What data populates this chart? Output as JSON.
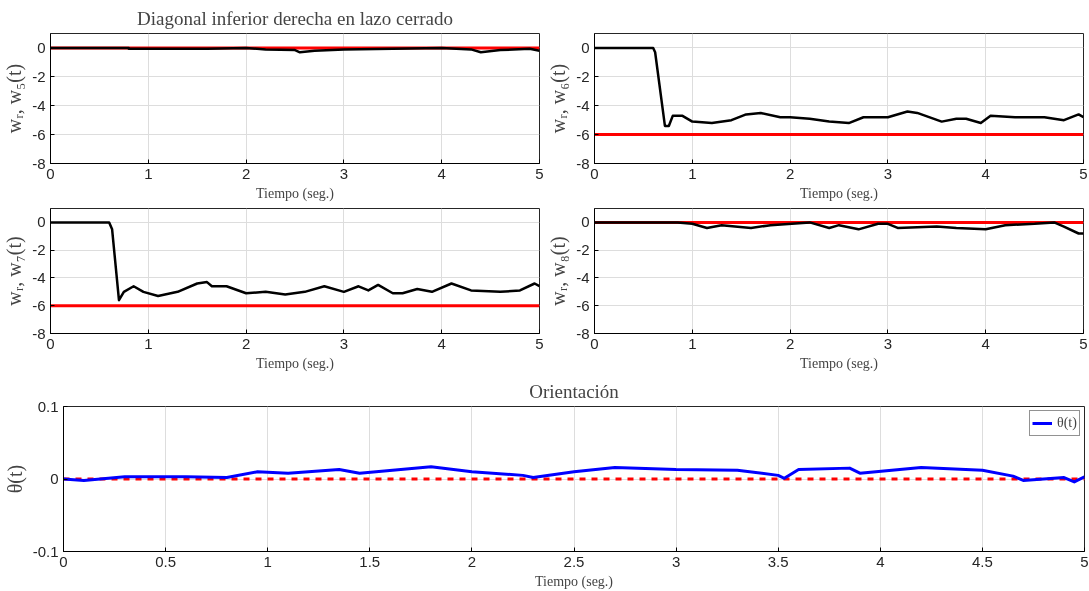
{
  "chart_data": [
    {
      "type": "line",
      "title": "Diagonal inferior derecha en lazo cerrado",
      "xlabel": "Tiempo (seg.)",
      "ylabel": "wᵣ, w₅(t)",
      "xlim": [
        0,
        5
      ],
      "ylim": [
        -8,
        1
      ],
      "xticks": [
        0,
        1,
        2,
        3,
        4,
        5
      ],
      "yticks": [
        -8,
        -6,
        -4,
        -2,
        0
      ],
      "grid": true,
      "series": [
        {
          "color": "#ff0000",
          "x": [
            0,
            5
          ],
          "values": [
            0,
            0
          ]
        },
        {
          "color": "#000000",
          "x": [
            0,
            0.8,
            0.8,
            1.6,
            2.0,
            2.2,
            2.5,
            2.55,
            2.7,
            3.0,
            3.5,
            4.0,
            4.3,
            4.4,
            4.6,
            4.9,
            5
          ],
          "values": [
            0,
            0,
            -0.05,
            -0.05,
            0,
            -0.1,
            -0.15,
            -0.3,
            -0.2,
            -0.1,
            -0.05,
            0,
            -0.1,
            -0.3,
            -0.15,
            -0.05,
            -0.2
          ]
        }
      ]
    },
    {
      "type": "line",
      "xlabel": "Tiempo (seg.)",
      "ylabel": "wᵣ, w₆(t)",
      "xlim": [
        0,
        5
      ],
      "ylim": [
        -8,
        1
      ],
      "xticks": [
        0,
        1,
        2,
        3,
        4,
        5
      ],
      "yticks": [
        -8,
        -6,
        -4,
        -2,
        0
      ],
      "grid": true,
      "series": [
        {
          "color": "#ff0000",
          "x": [
            0,
            5
          ],
          "values": [
            -6,
            -6
          ]
        },
        {
          "color": "#000000",
          "x": [
            0,
            0.6,
            0.62,
            0.72,
            0.76,
            0.8,
            0.9,
            1.0,
            1.2,
            1.4,
            1.55,
            1.7,
            1.9,
            2.0,
            2.2,
            2.4,
            2.6,
            2.75,
            3.0,
            3.2,
            3.3,
            3.55,
            3.7,
            3.8,
            3.95,
            4.05,
            4.3,
            4.6,
            4.8,
            4.95,
            5
          ],
          "values": [
            0,
            0,
            -0.3,
            -5.4,
            -5.4,
            -4.7,
            -4.7,
            -5.1,
            -5.2,
            -5.0,
            -4.6,
            -4.5,
            -4.8,
            -4.8,
            -4.9,
            -5.1,
            -5.2,
            -4.8,
            -4.8,
            -4.4,
            -4.5,
            -5.1,
            -4.9,
            -4.9,
            -5.2,
            -4.7,
            -4.8,
            -4.8,
            -5.0,
            -4.6,
            -4.8
          ]
        }
      ]
    },
    {
      "type": "line",
      "xlabel": "Tiempo (seg.)",
      "ylabel": "wᵣ, w₇(t)",
      "xlim": [
        0,
        5
      ],
      "ylim": [
        -8,
        1
      ],
      "xticks": [
        0,
        1,
        2,
        3,
        4,
        5
      ],
      "yticks": [
        -8,
        -6,
        -4,
        -2,
        0
      ],
      "grid": true,
      "series": [
        {
          "color": "#ff0000",
          "x": [
            0,
            5
          ],
          "values": [
            -6,
            -6
          ]
        },
        {
          "color": "#000000",
          "x": [
            0,
            0.6,
            0.63,
            0.7,
            0.75,
            0.85,
            0.95,
            1.1,
            1.3,
            1.5,
            1.6,
            1.65,
            1.8,
            2.0,
            2.2,
            2.4,
            2.6,
            2.8,
            3.0,
            3.15,
            3.25,
            3.35,
            3.5,
            3.6,
            3.75,
            3.9,
            4.1,
            4.3,
            4.6,
            4.8,
            4.95,
            5
          ],
          "values": [
            0,
            0,
            -0.5,
            -5.6,
            -5.0,
            -4.6,
            -5.0,
            -5.3,
            -5.0,
            -4.4,
            -4.3,
            -4.6,
            -4.6,
            -5.1,
            -5.0,
            -5.2,
            -5.0,
            -4.6,
            -5.0,
            -4.6,
            -4.9,
            -4.5,
            -5.1,
            -5.1,
            -4.8,
            -5.0,
            -4.4,
            -4.9,
            -5.0,
            -4.9,
            -4.4,
            -4.6
          ]
        }
      ]
    },
    {
      "type": "line",
      "xlabel": "Tiempo (seg.)",
      "ylabel": "wᵣ, w₈(t)",
      "xlim": [
        0,
        5
      ],
      "ylim": [
        -8,
        1
      ],
      "xticks": [
        0,
        1,
        2,
        3,
        4,
        5
      ],
      "yticks": [
        -8,
        -6,
        -4,
        -2,
        0
      ],
      "grid": true,
      "series": [
        {
          "color": "#ff0000",
          "x": [
            0,
            5
          ],
          "values": [
            0,
            0
          ]
        },
        {
          "color": "#000000",
          "x": [
            0,
            0.85,
            1.0,
            1.15,
            1.3,
            1.6,
            1.8,
            2.2,
            2.4,
            2.5,
            2.7,
            2.9,
            3.0,
            3.1,
            3.5,
            3.7,
            4.0,
            4.2,
            4.5,
            4.7,
            4.8,
            4.95,
            5
          ],
          "values": [
            0,
            0,
            -0.1,
            -0.4,
            -0.2,
            -0.4,
            -0.2,
            0,
            -0.4,
            -0.2,
            -0.5,
            -0.1,
            -0.1,
            -0.4,
            -0.3,
            -0.4,
            -0.5,
            -0.2,
            -0.1,
            0,
            -0.3,
            -0.8,
            -0.8
          ]
        }
      ]
    },
    {
      "type": "line",
      "title": "Orientación",
      "xlabel": "Tiempo (seg.)",
      "ylabel": "θ(t)",
      "xlim": [
        0,
        5
      ],
      "ylim": [
        -0.1,
        0.1
      ],
      "xticks": [
        0,
        0.5,
        1,
        1.5,
        2,
        2.5,
        3,
        3.5,
        4,
        4.5,
        5
      ],
      "yticks": [
        -0.1,
        0,
        0.1
      ],
      "grid": true,
      "legend": "top right",
      "series": [
        {
          "color": "#ff0000",
          "line_style": "dashed",
          "x": [
            0,
            5
          ],
          "values": [
            0,
            0
          ]
        },
        {
          "name": "θ(t)",
          "color": "#0000ff",
          "x": [
            0,
            0.1,
            0.3,
            0.6,
            0.8,
            0.95,
            1.1,
            1.35,
            1.45,
            1.8,
            2.0,
            2.25,
            2.3,
            2.5,
            2.7,
            3.0,
            3.3,
            3.5,
            3.53,
            3.6,
            3.85,
            3.9,
            4.2,
            4.5,
            4.65,
            4.7,
            4.9,
            4.95,
            5
          ],
          "values": [
            0,
            -0.002,
            0.003,
            0.003,
            0.002,
            0.01,
            0.008,
            0.013,
            0.008,
            0.017,
            0.01,
            0.005,
            0.002,
            0.01,
            0.016,
            0.013,
            0.012,
            0.005,
            0.001,
            0.013,
            0.015,
            0.008,
            0.016,
            0.012,
            0.004,
            -0.002,
            0.002,
            -0.004,
            0.003
          ]
        }
      ]
    }
  ]
}
